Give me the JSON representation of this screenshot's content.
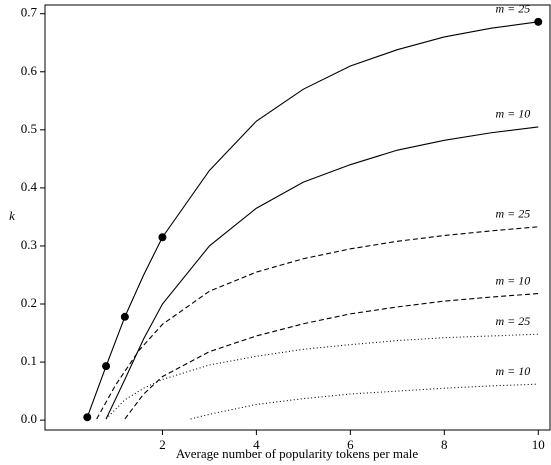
{
  "chart_data": {
    "type": "line",
    "x_label": "Average number of popularity tokens per male",
    "y_label": "k",
    "xlim": [
      -0.5,
      10.25
    ],
    "ylim": [
      -0.017,
      0.715
    ],
    "xticks": [
      2,
      4,
      6,
      8,
      10
    ],
    "yticks": [
      {
        "value": 0,
        "label": "0.0"
      },
      0.1,
      0.2,
      0.3,
      0.4,
      0.5,
      0.6,
      0.7
    ],
    "series": [
      {
        "name": "m = 25",
        "color": "#000",
        "dash": "solid",
        "x": [
          0.4,
          0.8,
          1.2,
          1.6,
          2,
          3,
          4,
          5,
          6,
          7,
          8,
          9,
          10
        ],
        "values": [
          0.005,
          0.093,
          0.178,
          0.25,
          0.315,
          0.43,
          0.515,
          0.57,
          0.61,
          0.638,
          0.66,
          0.675,
          0.686
        ]
      },
      {
        "name": "m = 10",
        "color": "#000",
        "dash": "solid",
        "x": [
          0.8,
          1.2,
          1.6,
          2,
          3,
          4,
          5,
          6,
          7,
          8,
          9,
          10
        ],
        "values": [
          0.002,
          0.07,
          0.14,
          0.2,
          0.3,
          0.365,
          0.41,
          0.44,
          0.465,
          0.482,
          0.495,
          0.505
        ]
      },
      {
        "name": "m = 25",
        "color": "#000",
        "dash": "dashed",
        "x": [
          0.6,
          1,
          1.5,
          2,
          3,
          4,
          5,
          6,
          7,
          8,
          9,
          10
        ],
        "values": [
          0.002,
          0.06,
          0.12,
          0.165,
          0.222,
          0.255,
          0.278,
          0.295,
          0.308,
          0.318,
          0.326,
          0.333
        ]
      },
      {
        "name": "m = 10",
        "color": "#000",
        "dash": "dashed",
        "x": [
          1.2,
          1.6,
          2,
          3,
          4,
          5,
          6,
          7,
          8,
          9,
          10
        ],
        "values": [
          0.002,
          0.045,
          0.075,
          0.118,
          0.145,
          0.166,
          0.183,
          0.195,
          0.205,
          0.212,
          0.218
        ]
      },
      {
        "name": "m = 25",
        "color": "#000",
        "dash": "dotted",
        "x": [
          0.8,
          1.2,
          1.6,
          2,
          3,
          4,
          5,
          6,
          7,
          8,
          9,
          10
        ],
        "values": [
          0.002,
          0.035,
          0.055,
          0.07,
          0.095,
          0.11,
          0.122,
          0.13,
          0.137,
          0.142,
          0.145,
          0.148
        ]
      },
      {
        "name": "m = 10",
        "color": "#000",
        "dash": "dotted",
        "x": [
          2.6,
          3,
          4,
          5,
          6,
          7,
          8,
          9,
          10
        ],
        "values": [
          0.002,
          0.01,
          0.027,
          0.037,
          0.045,
          0.05,
          0.055,
          0.059,
          0.062
        ]
      }
    ],
    "markers": {
      "color": "#000",
      "x": [
        0.4,
        0.8,
        1.2,
        2,
        10
      ],
      "values": [
        0.005,
        0.093,
        0.178,
        0.315,
        0.686
      ]
    }
  }
}
